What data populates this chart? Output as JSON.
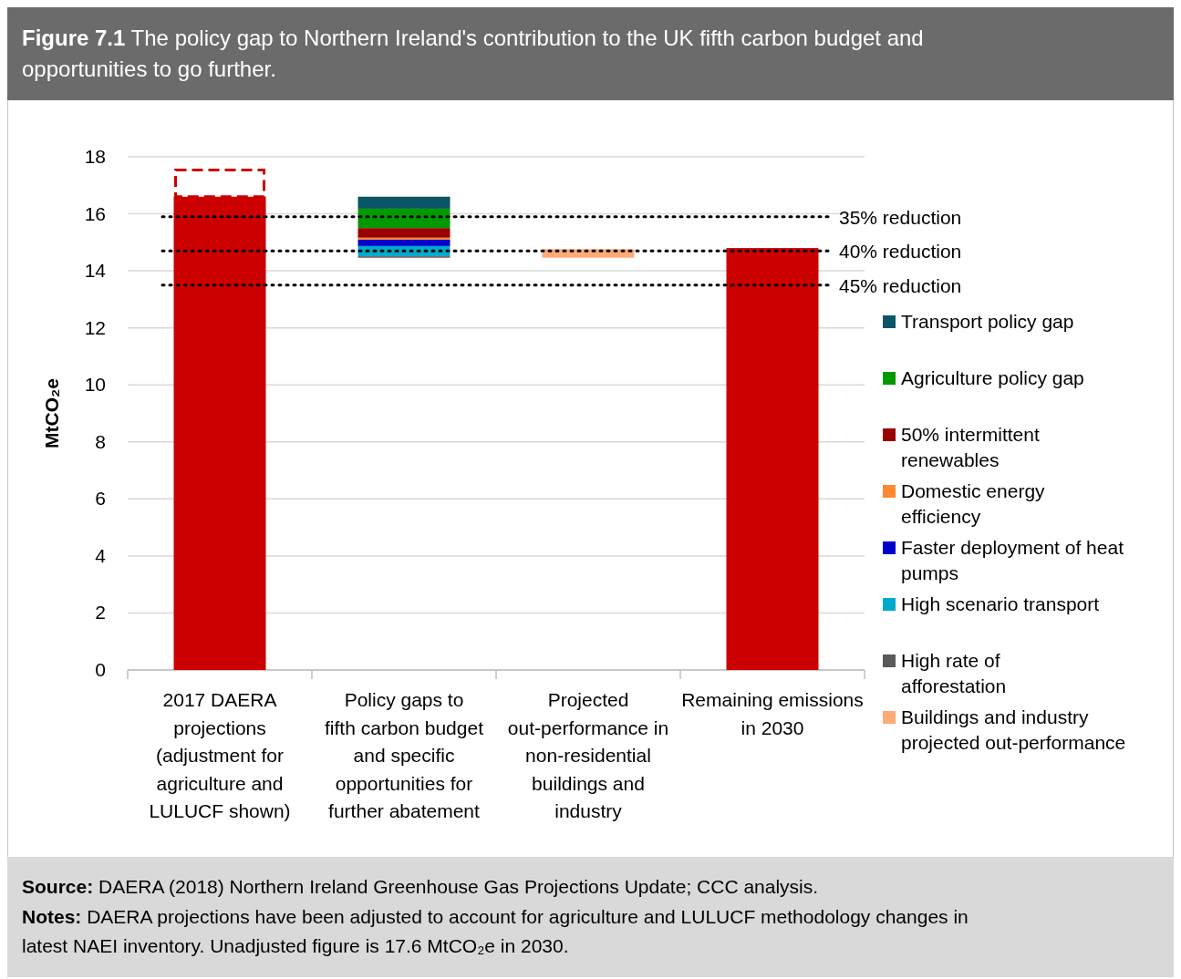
{
  "chart_data": {
    "type": "bar",
    "title": "Figure 7.1 The policy gap to Northern Ireland's contribution to the UK fifth carbon budget and opportunities to go further.",
    "ylabel": "MtCO₂e",
    "categories": [
      "2017 DAERA projections (adjustment for agriculture and LULUCF shown)",
      "Policy gaps to fifth carbon budget and specific opportunities for further abatement",
      "Projected out-performance in non-residential buildings and industry",
      "Remaining emissions in 2030"
    ],
    "series": [
      {
        "color": "#cc0000",
        "values": [
          16.6,
          null,
          null,
          14.8
        ],
        "base": [
          0,
          null,
          null,
          0
        ]
      },
      {
        "color": "#cc0000",
        "line_style": "dashed",
        "values": [
          1.0,
          null,
          null,
          null
        ],
        "base": [
          16.6,
          null,
          null,
          null
        ]
      },
      {
        "name": "Transport policy gap",
        "color": "#0a5566",
        "values": [
          null,
          0.42,
          null,
          null
        ],
        "base": [
          null,
          16.18,
          null,
          null
        ]
      },
      {
        "name": "Agriculture policy gap",
        "color": "#009900",
        "values": [
          null,
          0.68,
          null,
          null
        ],
        "base": [
          null,
          15.5,
          null,
          null
        ]
      },
      {
        "name": "50% intermittent renewables",
        "color": "#990000",
        "values": [
          null,
          0.34,
          null,
          null
        ],
        "base": [
          null,
          15.16,
          null,
          null
        ]
      },
      {
        "name": "Domestic energy efficiency",
        "color": "#ff8833",
        "values": [
          null,
          0.07,
          null,
          null
        ],
        "base": [
          null,
          15.09,
          null,
          null
        ]
      },
      {
        "name": "Faster deployment of heat pumps",
        "color": "#0000cc",
        "values": [
          null,
          0.22,
          null,
          null
        ],
        "base": [
          null,
          14.87,
          null,
          null
        ]
      },
      {
        "name": "High scenario transport",
        "color": "#00aacc",
        "values": [
          null,
          0.36,
          null,
          null
        ],
        "base": [
          null,
          14.51,
          null,
          null
        ]
      },
      {
        "name": "High rate of afforestation",
        "color": "#595959",
        "values": [
          null,
          0.05,
          null,
          null
        ],
        "base": [
          null,
          14.46,
          null,
          null
        ]
      },
      {
        "name": "Buildings and industry projected out-performance",
        "color": "#ffaa77",
        "values": [
          null,
          null,
          0.3,
          null
        ],
        "base": [
          null,
          null,
          14.46,
          null
        ]
      }
    ],
    "ylim": [
      0,
      18
    ],
    "yticks": [
      0,
      2,
      4,
      6,
      8,
      10,
      12,
      14,
      16,
      18
    ],
    "grid": "y",
    "legend": "right",
    "ref_lines": [
      {
        "axis": "y",
        "value": 15.9,
        "label": "35% reduction",
        "color": "#000000",
        "line_style": "dotted"
      },
      {
        "axis": "y",
        "value": 14.7,
        "label": "40% reduction",
        "color": "#000000",
        "line_style": "dotted"
      },
      {
        "axis": "y",
        "value": 13.5,
        "label": "45% reduction",
        "color": "#000000",
        "line_style": "dotted"
      }
    ],
    "annotations": [
      "Source: DAERA (2018) Northern Ireland Greenhouse Gas Projections Update; CCC analysis.",
      "Notes: DAERA projections have been adjusted to account for agriculture and LULUCF methodology changes in latest NAEI inventory. Unadjusted figure is 17.6 MtCO₂e in 2030."
    ]
  }
}
